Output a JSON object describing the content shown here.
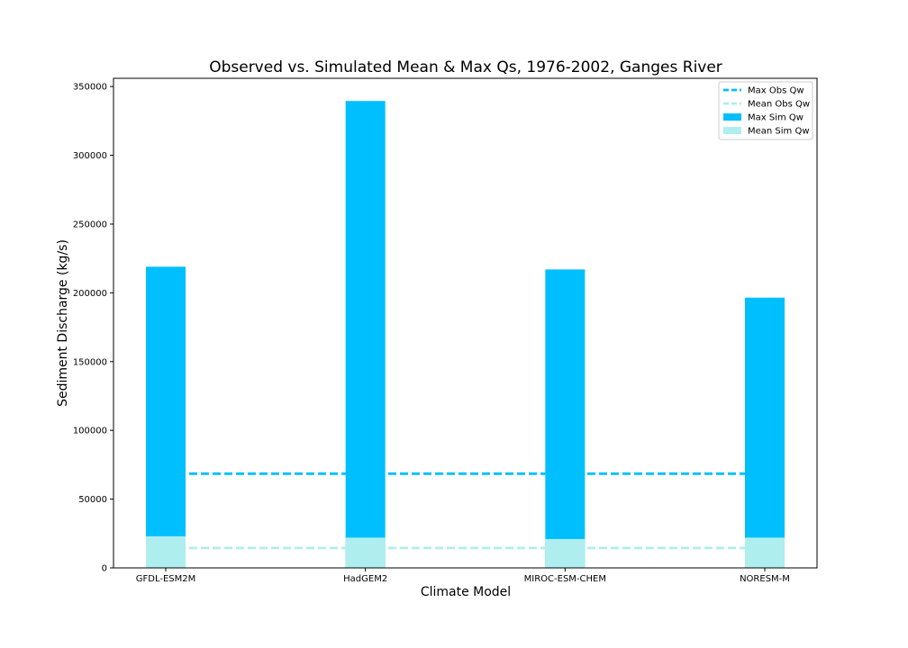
{
  "chart_data": {
    "type": "bar",
    "title": "Observed vs. Simulated Mean & Max Qs, 1976-2002, Ganges River",
    "xlabel": "Climate Model",
    "ylabel": "Sediment Discharge (kg/s)",
    "categories": [
      "GFDL-ESM2M",
      "HadGEM2",
      "MIROC-ESM-CHEM",
      "NORESM-M"
    ],
    "series": [
      {
        "name": "Max Sim Qw",
        "values": [
          219000,
          339500,
          217000,
          196500
        ],
        "color": "#00bfff"
      },
      {
        "name": "Mean Sim Qw",
        "values": [
          23000,
          22000,
          21000,
          22000
        ],
        "color": "#afeeee"
      }
    ],
    "reference_lines": [
      {
        "name": "Max Obs Qw",
        "value": 68500,
        "style": "dashed",
        "color": "#00bfff"
      },
      {
        "name": "Mean Obs Qw",
        "value": 14500,
        "style": "dashed",
        "color": "#afeeee"
      }
    ],
    "ylim": [
      0,
      356000
    ],
    "yticks": [
      0,
      50000,
      100000,
      150000,
      200000,
      250000,
      300000,
      350000
    ],
    "grid": false,
    "legend_position": "top-right",
    "legend": [
      "Max Obs Qw",
      "Mean Obs Qw",
      "Max Sim Qw",
      "Mean Sim Qw"
    ]
  }
}
